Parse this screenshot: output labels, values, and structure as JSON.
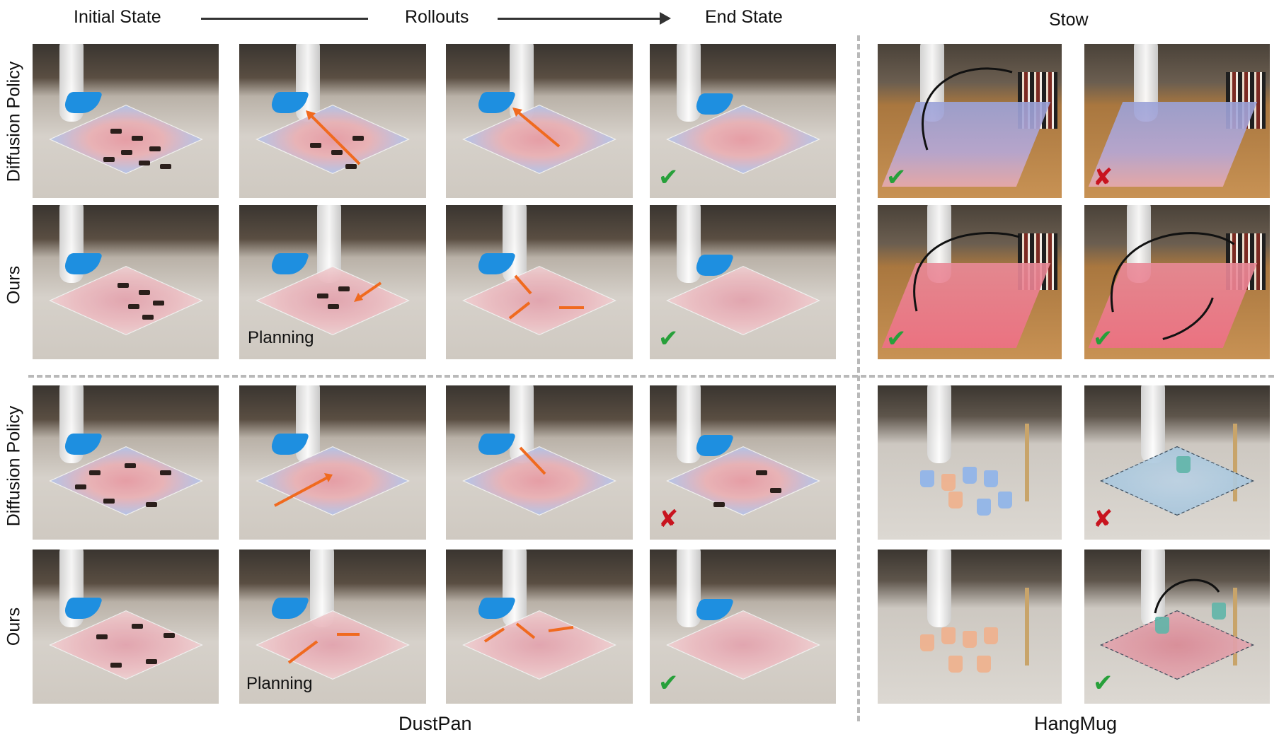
{
  "headers": {
    "initial_state": "Initial State",
    "rollouts": "Rollouts",
    "end_state": "End State",
    "stow": "Stow"
  },
  "row_labels": {
    "diffusion_policy_1": "Diffusion Policy",
    "ours_1": "Ours",
    "diffusion_policy_2": "Diffusion Policy",
    "ours_2": "Ours"
  },
  "annotations": {
    "planning_1": "Planning",
    "planning_2": "Planning"
  },
  "marks": {
    "success": "✔",
    "failure": "✘"
  },
  "footers": {
    "dustpan": "DustPan",
    "hangmug": "HangMug"
  },
  "colors": {
    "success": "#27a03a",
    "failure": "#c8141f",
    "tool_orange": "#f06a1f",
    "dustpan_blue": "#1e8fe0"
  }
}
